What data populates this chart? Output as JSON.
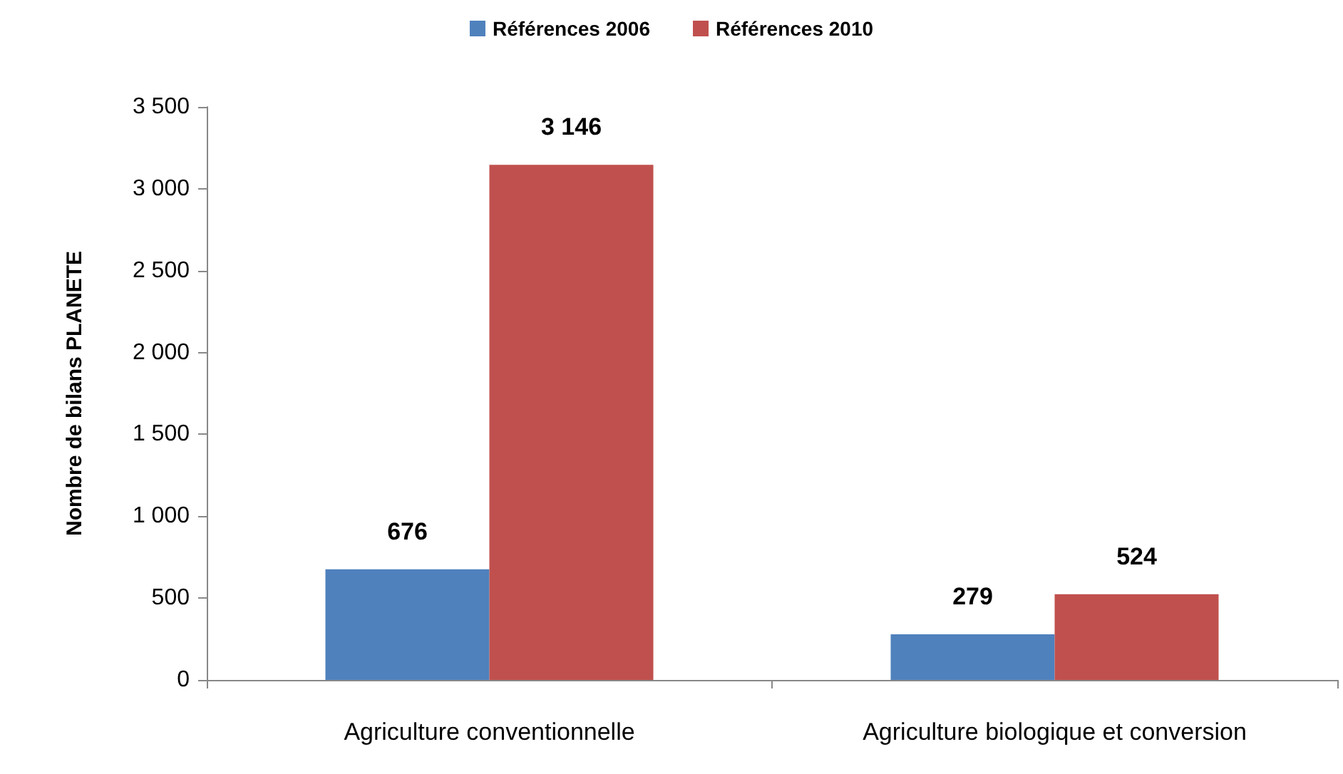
{
  "chart_data": {
    "type": "bar",
    "ylabel": "Nombre de bilans PLANETE",
    "categories": [
      "Agriculture conventionnelle",
      "Agriculture biologique et conversion"
    ],
    "series": [
      {
        "name": "Références 2006",
        "color": "#4f81bd",
        "values": [
          676,
          279
        ],
        "value_labels": [
          "676",
          "279"
        ]
      },
      {
        "name": "Références 2010",
        "color": "#c0504d",
        "values": [
          3146,
          524
        ],
        "value_labels": [
          "3 146",
          "524"
        ]
      }
    ],
    "ylim": [
      0,
      3500
    ],
    "yticks": [
      0,
      500,
      {
        "value": 1000,
        "label": "1 000"
      },
      {
        "value": 1500,
        "label": "1 500"
      },
      {
        "value": 2000,
        "label": "2 000"
      },
      {
        "value": 2500,
        "label": "2 500"
      },
      {
        "value": 3000,
        "label": "3 000"
      },
      {
        "value": 3500,
        "label": "3 500"
      }
    ],
    "grid": false,
    "legend": "top"
  }
}
